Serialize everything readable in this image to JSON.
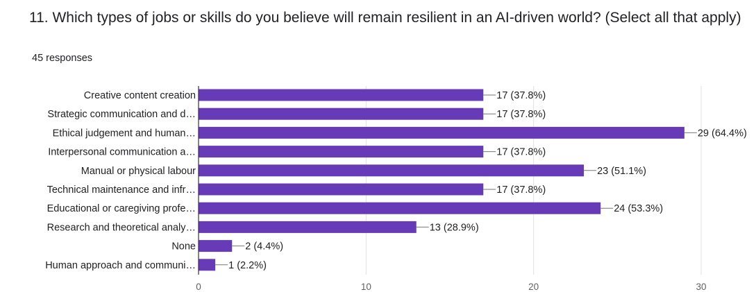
{
  "question_title": "11. Which types of jobs or skills do you believe will remain resilient in an AI-driven world? (Select all that apply)",
  "responses_text": "45 responses",
  "colors": {
    "bar": "#673ab7",
    "grid": "#e0e0e0",
    "axis": "#333333"
  },
  "chart_data": {
    "type": "bar",
    "orientation": "horizontal",
    "title": "",
    "xlabel": "",
    "ylabel": "",
    "xlim": [
      0,
      30
    ],
    "grid": true,
    "categories": [
      "Creative content creation",
      "Strategic communication and d…",
      "Ethical judgement and human…",
      "Interpersonal communication a…",
      "Manual or physical labour",
      "Technical maintenance and infr…",
      "Educational or caregiving profe…",
      "Research and theoretical analy…",
      "None",
      "Human approach and communi…"
    ],
    "values": [
      17,
      17,
      29,
      17,
      23,
      17,
      24,
      13,
      2,
      1
    ],
    "value_labels": [
      "17 (37.8%)",
      "17 (37.8%)",
      "29 (64.4%)",
      "17 (37.8%)",
      "23 (51.1%)",
      "17 (37.8%)",
      "24 (53.3%)",
      "13 (28.9%)",
      "2 (4.4%)",
      "1 (2.2%)"
    ],
    "x_ticks": [
      0,
      10,
      20,
      30
    ],
    "x_tick_labels": [
      "0",
      "10",
      "20",
      "30"
    ]
  }
}
